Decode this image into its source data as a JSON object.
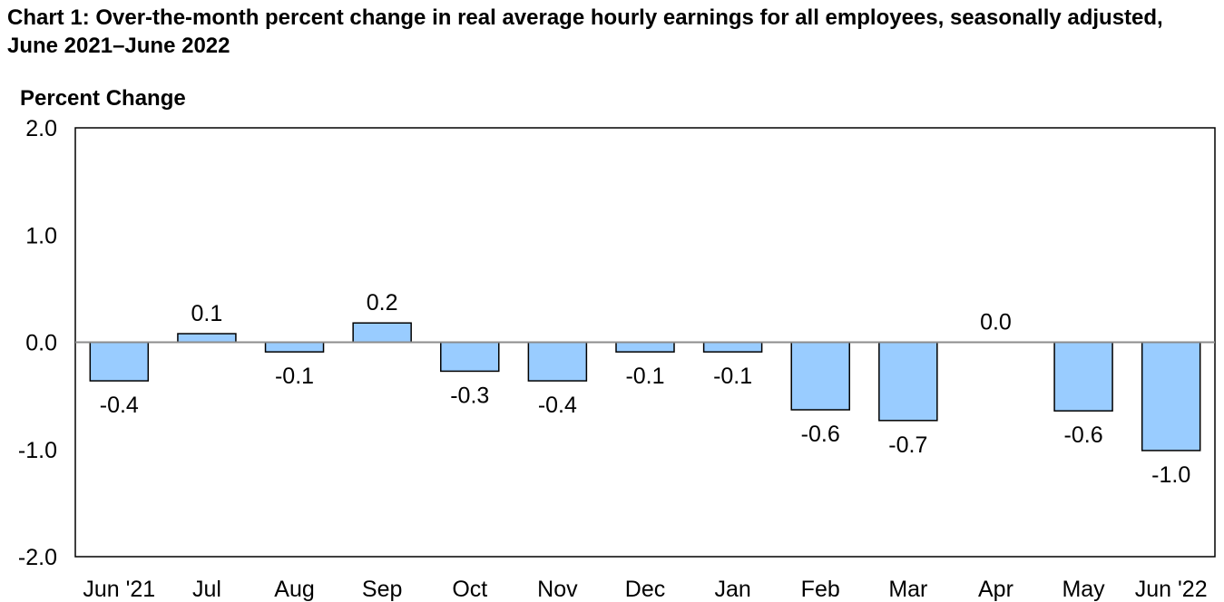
{
  "chart_data": {
    "type": "bar",
    "title": "Chart 1: Over-the-month percent change in real average hourly earnings for all employees, seasonally adjusted, June 2021–June 2022",
    "ylabel": "Percent Change",
    "xlabel": "",
    "categories": [
      "Jun '21",
      "Jul",
      "Aug",
      "Sep",
      "Oct",
      "Nov",
      "Dec",
      "Jan",
      "Feb",
      "Mar",
      "Apr",
      "May",
      "Jun '22"
    ],
    "values": [
      -0.36,
      0.08,
      -0.09,
      0.18,
      -0.27,
      -0.36,
      -0.09,
      -0.09,
      -0.63,
      -0.73,
      0.0,
      -0.64,
      -1.01
    ],
    "data_labels": [
      "-0.4",
      "0.1",
      "-0.1",
      "0.2",
      "-0.3",
      "-0.4",
      "-0.1",
      "-0.1",
      "-0.6",
      "-0.7",
      "0.0",
      "-0.6",
      "-1.0"
    ],
    "ylim": [
      -2.0,
      2.0
    ],
    "yticks": [
      "-2.0",
      "-1.0",
      "0.0",
      "1.0",
      "2.0"
    ],
    "ytick_values": [
      -2,
      -1,
      0,
      1,
      2
    ],
    "grid": false,
    "bar_color": "#99ccff"
  }
}
